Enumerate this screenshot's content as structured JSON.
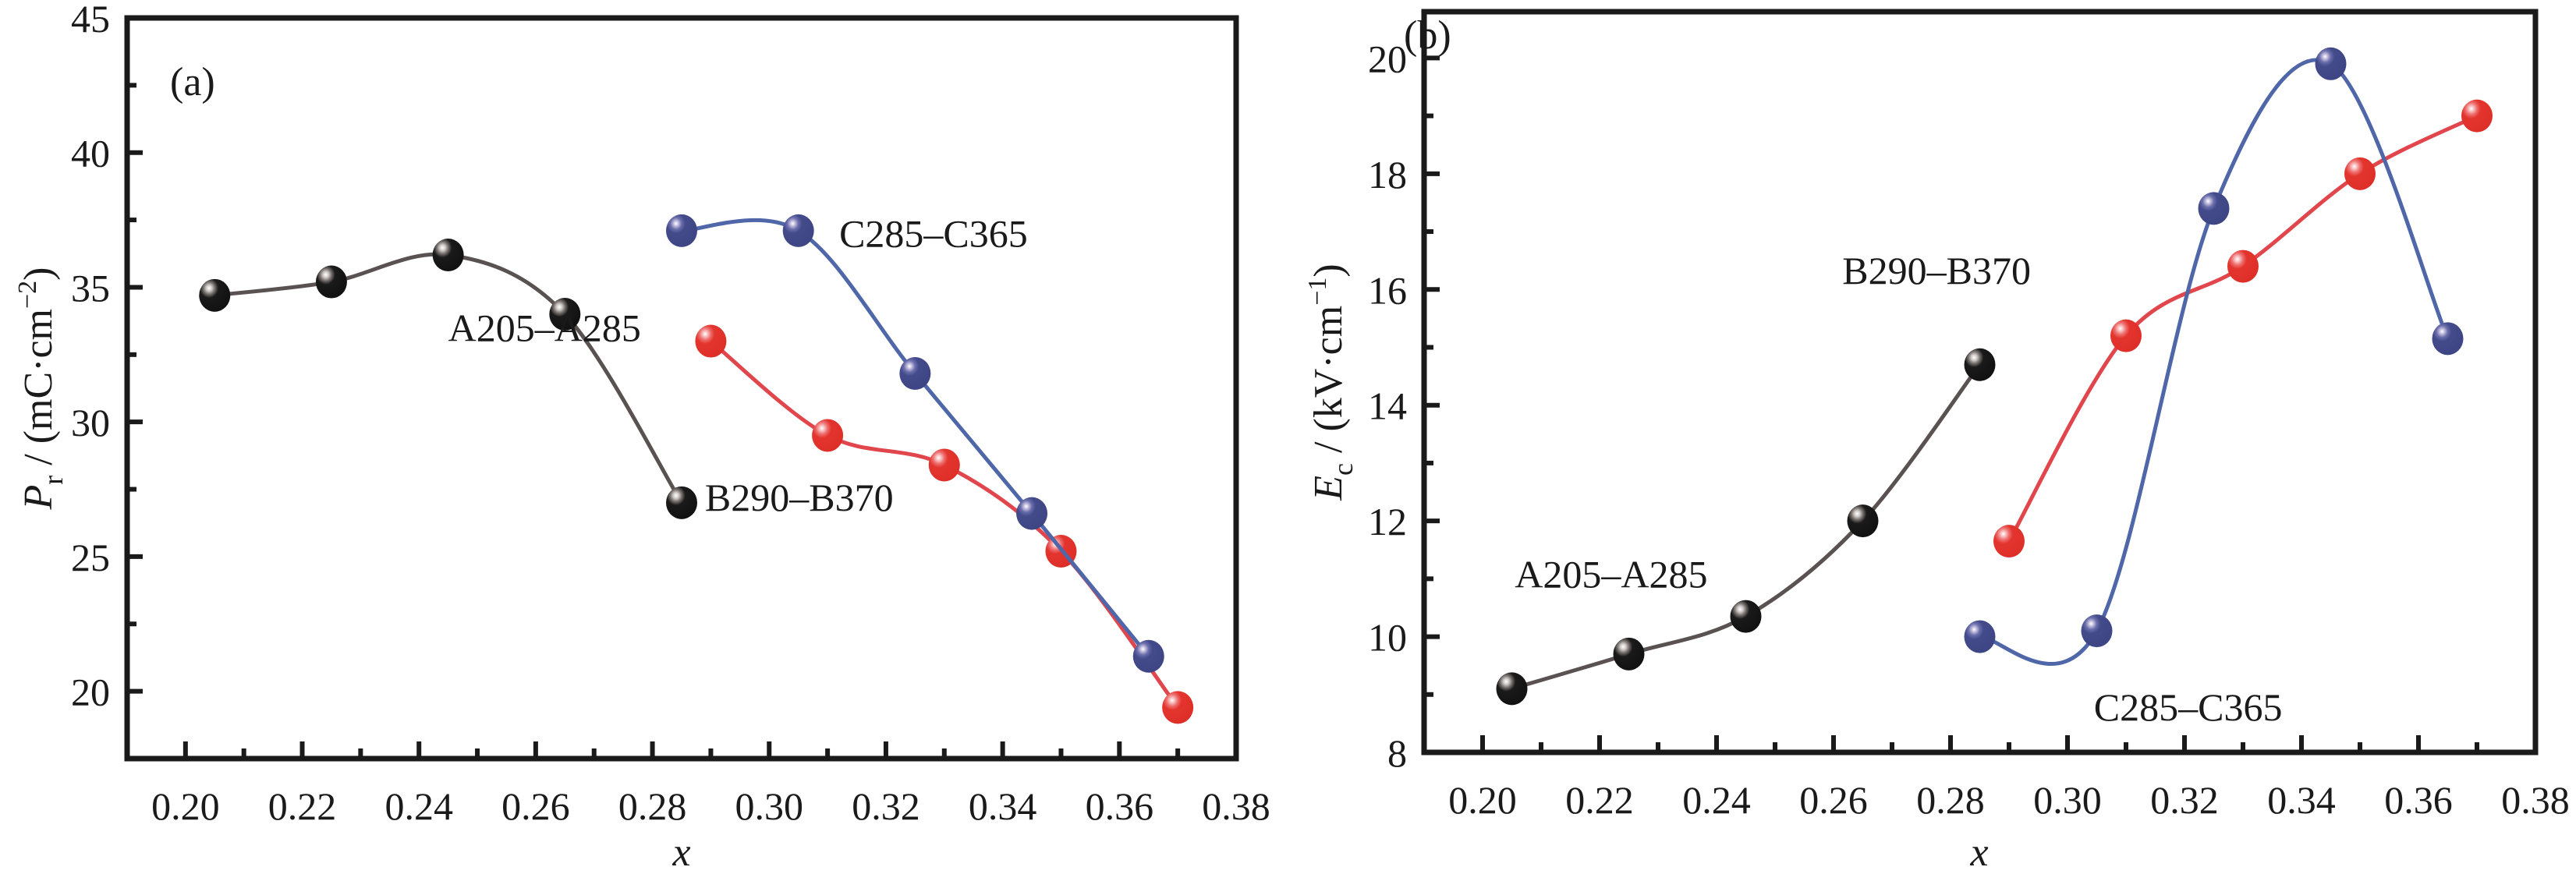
{
  "chart_data": [
    {
      "type": "line",
      "panel_label": "(a)",
      "title": "",
      "xlabel": "x",
      "ylabel": "P_r / (mC·cm^-2)",
      "ylabel_parts": {
        "symbol": "P",
        "sub": "r",
        "unit": " / (mC·cm",
        "sup": "−2",
        "close": ")"
      },
      "xlim": [
        0.19,
        0.38
      ],
      "ylim": [
        17.5,
        45
      ],
      "xticks": [
        0.2,
        0.22,
        0.24,
        0.26,
        0.28,
        0.3,
        0.32,
        0.34,
        0.36,
        0.38
      ],
      "xtick_labels": [
        "0.20",
        "0.22",
        "0.24",
        "0.26",
        "0.28",
        "0.30",
        "0.32",
        "0.34",
        "0.36",
        "0.38"
      ],
      "yticks": [
        20,
        25,
        30,
        35,
        40,
        45
      ],
      "ytick_labels": [
        "20",
        "25",
        "30",
        "35",
        "40",
        "45"
      ],
      "grid": false,
      "legend": "none (inline labels)",
      "series": [
        {
          "name": "A205–A285",
          "color": "#1a1a1a",
          "line_color": "#5a5250",
          "x": [
            0.205,
            0.225,
            0.245,
            0.265,
            0.285
          ],
          "y": [
            34.7,
            35.2,
            36.2,
            34.0,
            27.0
          ],
          "label_at": [
            0.245,
            33.0
          ]
        },
        {
          "name": "B290–B370",
          "color": "#e23a31",
          "line_color": "#e0464c",
          "x": [
            0.29,
            0.31,
            0.33,
            0.35,
            0.37
          ],
          "y": [
            33.0,
            29.5,
            28.4,
            25.2,
            19.4
          ],
          "label_at": [
            0.289,
            26.7
          ]
        },
        {
          "name": "C285–C365",
          "color": "#434b8b",
          "line_color": "#4f67a8",
          "x": [
            0.285,
            0.305,
            0.325,
            0.345,
            0.365
          ],
          "y": [
            37.1,
            37.1,
            31.8,
            26.6,
            21.3
          ],
          "label_at": [
            0.312,
            36.5
          ]
        }
      ]
    },
    {
      "type": "line",
      "panel_label": "(b)",
      "title": "",
      "xlabel": "x",
      "ylabel": "E_c / (kV·cm^-1)",
      "ylabel_parts": {
        "symbol": "E",
        "sub": "c",
        "unit": " / (kV·cm",
        "sup": "−1",
        "close": ")"
      },
      "xlim": [
        0.19,
        0.38
      ],
      "ylim": [
        8,
        20.8
      ],
      "xticks": [
        0.2,
        0.22,
        0.24,
        0.26,
        0.28,
        0.3,
        0.32,
        0.34,
        0.36,
        0.38
      ],
      "xtick_labels": [
        "0.20",
        "0.22",
        "0.24",
        "0.26",
        "0.28",
        "0.30",
        "0.32",
        "0.34",
        "0.36",
        "0.38"
      ],
      "yticks": [
        8,
        10,
        12,
        14,
        16,
        18,
        20
      ],
      "ytick_labels": [
        "8",
        "10",
        "12",
        "14",
        "16",
        "18",
        "20"
      ],
      "grid": false,
      "legend": "none (inline labels)",
      "series": [
        {
          "name": "A205–A285",
          "color": "#1a1a1a",
          "line_color": "#5a5250",
          "x": [
            0.205,
            0.225,
            0.245,
            0.265,
            0.285
          ],
          "y": [
            9.1,
            9.7,
            10.35,
            12.0,
            14.7
          ],
          "label_at": [
            0.2055,
            10.85
          ]
        },
        {
          "name": "B290–B370",
          "color": "#e23a31",
          "line_color": "#e0464c",
          "x": [
            0.29,
            0.31,
            0.33,
            0.35,
            0.37
          ],
          "y": [
            11.65,
            15.2,
            16.4,
            18.0,
            19.0
          ],
          "label_at": [
            0.2615,
            16.1
          ]
        },
        {
          "name": "C285–C365",
          "color": "#434b8b",
          "line_color": "#4f67a8",
          "x": [
            0.285,
            0.305,
            0.325,
            0.345,
            0.365
          ],
          "y": [
            10.0,
            10.1,
            17.4,
            19.9,
            15.15
          ],
          "label_at": [
            0.3045,
            8.55
          ]
        }
      ]
    }
  ]
}
